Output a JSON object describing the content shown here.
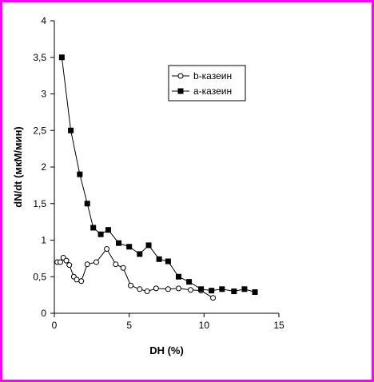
{
  "chart_data": {
    "type": "scatter",
    "title": "",
    "xlabel": "DH (%)",
    "ylabel": "dN/dt (мкМ/мин)",
    "xlim": [
      0,
      15
    ],
    "ylim": [
      0,
      4
    ],
    "x_ticks": [
      0,
      5,
      10,
      15
    ],
    "x_tick_labels": [
      "0",
      "5",
      "10",
      "15"
    ],
    "y_ticks": [
      0,
      0.5,
      1,
      1.5,
      2,
      2.5,
      3,
      3.5,
      4
    ],
    "y_tick_labels": [
      "0",
      "0,5",
      "1",
      "1,5",
      "2",
      "2,5",
      "3",
      "3,5",
      "4"
    ],
    "grid": false,
    "legend_position": "top-right",
    "series": [
      {
        "name": "b-казеин",
        "marker": "circle-open",
        "color": "#000000",
        "x": [
          0.2,
          0.4,
          0.6,
          0.8,
          1.0,
          1.3,
          1.5,
          1.8,
          2.2,
          2.8,
          3.5,
          4.1,
          4.6,
          5.1,
          5.7,
          6.2,
          6.8,
          7.6,
          8.3,
          9.1,
          9.8,
          10.6
        ],
        "y": [
          0.7,
          0.7,
          0.76,
          0.72,
          0.66,
          0.5,
          0.46,
          0.44,
          0.67,
          0.7,
          0.88,
          0.67,
          0.62,
          0.38,
          0.33,
          0.3,
          0.34,
          0.33,
          0.34,
          0.32,
          0.31,
          0.21
        ]
      },
      {
        "name": "a-казеин",
        "marker": "square-filled",
        "color": "#000000",
        "x": [
          0.5,
          1.1,
          1.7,
          2.2,
          2.6,
          3.1,
          3.6,
          4.3,
          5.0,
          5.7,
          6.3,
          7.0,
          7.6,
          8.3,
          9.0,
          9.8,
          10.5,
          11.2,
          12.0,
          12.7,
          13.4
        ],
        "y": [
          3.5,
          2.5,
          1.9,
          1.5,
          1.17,
          1.08,
          1.14,
          0.96,
          0.91,
          0.81,
          0.93,
          0.74,
          0.71,
          0.5,
          0.43,
          0.33,
          0.31,
          0.33,
          0.3,
          0.33,
          0.29
        ]
      }
    ]
  }
}
